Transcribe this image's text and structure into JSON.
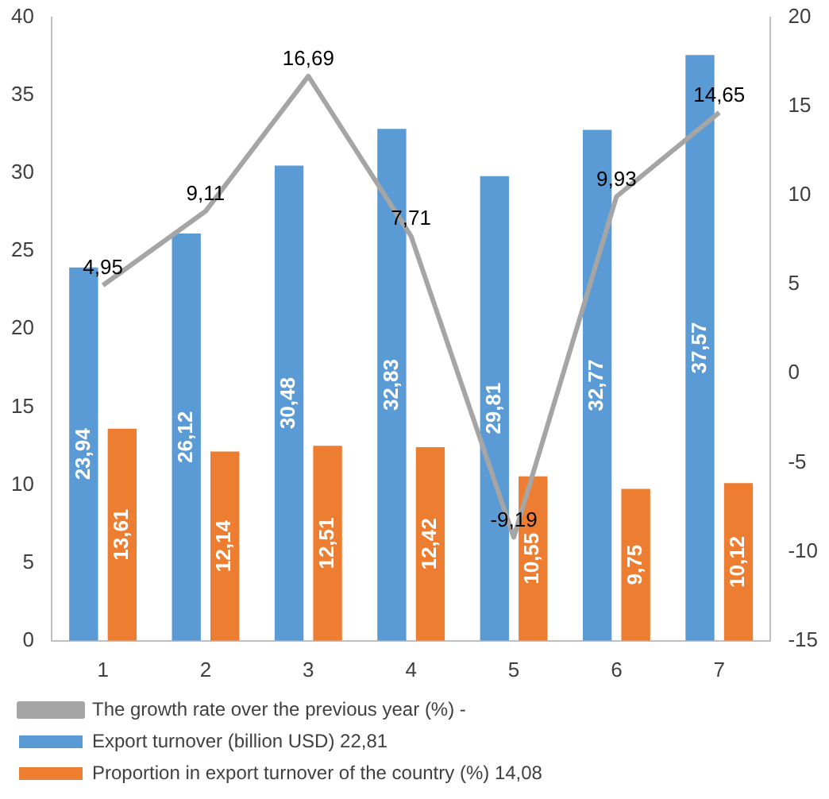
{
  "chart_data": {
    "type": "bar",
    "categories": [
      "1",
      "2",
      "3",
      "4",
      "5",
      "6",
      "7"
    ],
    "series": [
      {
        "name": "Export turnover (billion USD) 22,81",
        "color": "#5b9bd5",
        "values": [
          23.94,
          26.12,
          30.48,
          32.83,
          29.81,
          32.77,
          37.57
        ],
        "value_labels": [
          "23,94",
          "26,12",
          "30,48",
          "32,83",
          "29,81",
          "32,77",
          "37,57"
        ]
      },
      {
        "name": "Proportion in export turnover of the country (%) 14,08",
        "color": "#ed7d31",
        "values": [
          13.61,
          12.14,
          12.51,
          12.42,
          10.55,
          9.75,
          10.12
        ],
        "value_labels": [
          "13,61",
          "12,14",
          "12,51",
          "12,42",
          "10,55",
          "9,75",
          "10,12"
        ]
      },
      {
        "name": "The growth rate over the previous year (%) -",
        "type": "line",
        "axis": "y2",
        "color": "#a5a5a5",
        "values": [
          4.95,
          9.11,
          16.69,
          7.71,
          -9.19,
          9.93,
          14.65
        ],
        "value_labels": [
          "4,95",
          "9,11",
          "16,69",
          "7,71",
          "-9,19",
          "9,93",
          "14,65"
        ]
      }
    ],
    "ylim": [
      0,
      40
    ],
    "yticks": [
      0,
      5,
      10,
      15,
      20,
      25,
      30,
      35,
      40
    ],
    "y2lim": [
      -15,
      20
    ],
    "y2ticks": [
      -15,
      -10,
      -5,
      0,
      5,
      10,
      15,
      20
    ],
    "legend": "bottom"
  }
}
